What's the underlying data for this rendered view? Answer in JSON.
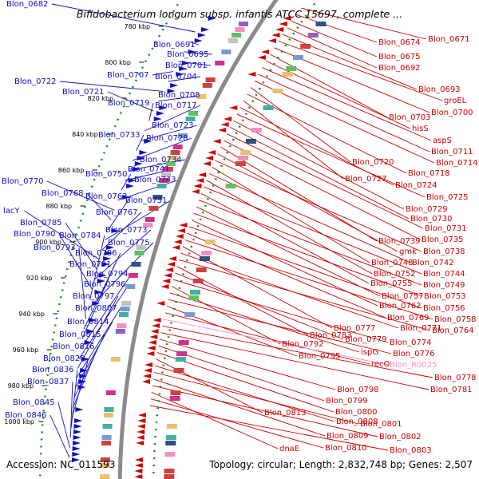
{
  "title": "Bifidobacterium longum subsp. infantis ATCC 15697, complete ...",
  "accession": "Accession: NC_011593",
  "topology": "Topology: circular; Length: 2,832,748 bp; Genes: 2,507",
  "colors": {
    "plus_strand": "#1010c0",
    "minus_strand": "#cc0000",
    "rna": "#ff8fc8",
    "backbone": "#8a8a8a",
    "tick_dots": "#1a8a1a"
  },
  "ticks": [
    "780 kbp",
    "800 kbp",
    "820 kbp",
    "840 kbp",
    "860 kbp",
    "880 kbp",
    "900 kbp",
    "920 kbp",
    "940 kbp",
    "960 kbp",
    "980 kbp",
    "1000 kbp"
  ],
  "left_labels": [
    "Blon_0682",
    "Blon_0691",
    "Blon_0695",
    "Blon_0701",
    "Blon_0707",
    "Blon_0704",
    "Blon_0722",
    "Blon_0708",
    "Blon_0721",
    "Blon_0719",
    "Blon_0717",
    "Blon_0723",
    "Blon_0733",
    "Blon_0728",
    "Blon_0734",
    "Blon_0741",
    "Blon_0750",
    "Blon_0743",
    "Blon_0770",
    "Blon_0768",
    "Blon_0763",
    "Blon_0751",
    "Blon_0767",
    "lacY",
    "Blon_0785",
    "Blon_0773",
    "Blon_0790",
    "Blon_0784",
    "Blon_0775",
    "Blon_0793",
    "Blon_0786",
    "Blon_0791",
    "Blon_0794",
    "Blon_0796",
    "Blon_0797",
    "Blon_0807",
    "Blon_0814",
    "Blon_0815",
    "Blon_0816",
    "Blon_0820",
    "Blon_0836",
    "Blon_0837",
    "Blon_0845",
    "Blon_0846"
  ],
  "right_labels": [
    "Blon_0671",
    "Blon_0674",
    "Blon_0675",
    "Blon_0692",
    "Blon_0693",
    "groEL",
    "Blon_0700",
    "Blon_0703",
    "hisS",
    "aspS",
    "Blon_0711",
    "Blon_0714",
    "Blon_0720",
    "Blon_0718",
    "Blon_0727",
    "Blon_0724",
    "Blon_0725",
    "Blon_0729",
    "Blon_0730",
    "Blon_0731",
    "Blon_0735",
    "Blon_0739",
    "gmk",
    "Blon_0738",
    "Blon_0748",
    "Blon_0742",
    "Blon_0752",
    "Blon_0744",
    "Blon_0755",
    "Blon_0749",
    "Blon_0757",
    "Blon_0753",
    "Blon_0762",
    "Blon_0756",
    "Blon_0769",
    "Blon_0758",
    "Blon_0777",
    "Blon_0771",
    "Blon_0764",
    "Blon_0783",
    "Blon_0779",
    "Blon_0774",
    "Blon_0792",
    "ispG",
    "Blon_0776",
    "Blon_0795",
    "recO",
    "Blon_R0025",
    "Blon_0778",
    "Blon_0781",
    "Blon_0798",
    "Blon_0799",
    "Blon_0800",
    "Blon_0813",
    "Blon_0808",
    "Blon_0801",
    "Blon_0809",
    "Blon_0802",
    "dnaE",
    "Blon_0810",
    "Blon_0803"
  ]
}
